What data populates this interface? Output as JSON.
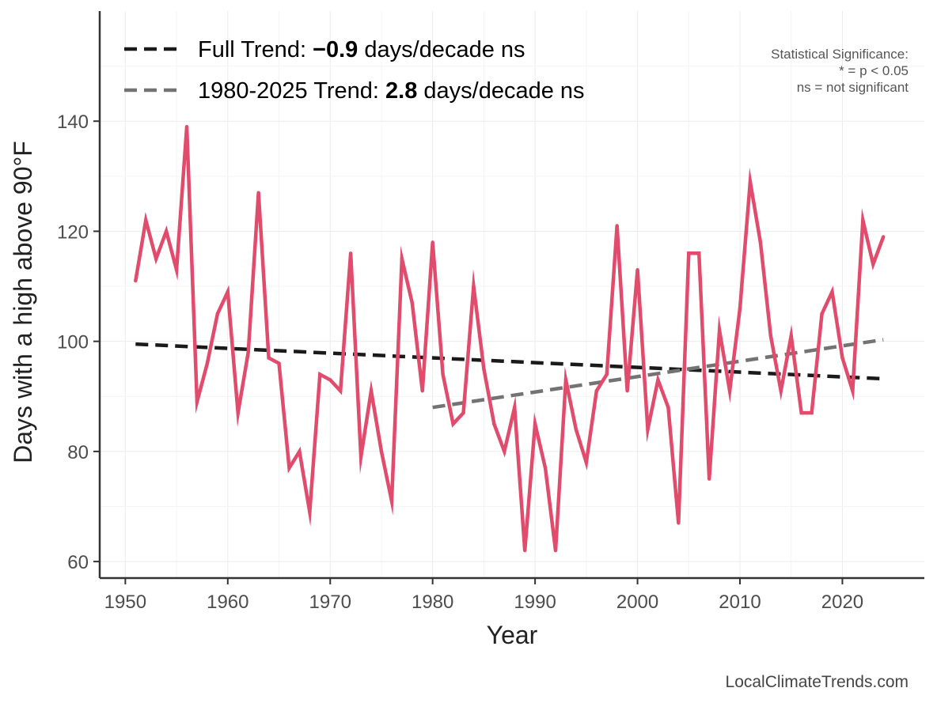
{
  "chart_data": {
    "type": "line",
    "title": "",
    "xlabel": "Year",
    "ylabel": "Days with a high above 90°F",
    "xlim": [
      1947.5,
      2028
    ],
    "ylim": [
      57,
      160
    ],
    "x_ticks": [
      1950,
      1960,
      1970,
      1980,
      1990,
      2000,
      2010,
      2020
    ],
    "y_ticks": [
      60,
      80,
      100,
      120,
      140
    ],
    "grid": true,
    "colors": {
      "series": "#e14b6c",
      "full_trend": "#1a1a1a",
      "recent_trend": "#737373",
      "axis": "#333333",
      "grid": "#ececec"
    },
    "series": [
      {
        "name": "Days with a high above 90°F",
        "x": [
          1951,
          1952,
          1953,
          1954,
          1955,
          1956,
          1957,
          1958,
          1959,
          1960,
          1961,
          1962,
          1963,
          1964,
          1965,
          1966,
          1967,
          1968,
          1969,
          1970,
          1971,
          1972,
          1973,
          1974,
          1975,
          1976,
          1977,
          1978,
          1979,
          1980,
          1981,
          1982,
          1983,
          1984,
          1985,
          1986,
          1987,
          1988,
          1989,
          1990,
          1991,
          1992,
          1993,
          1994,
          1995,
          1996,
          1997,
          1998,
          1999,
          2000,
          2001,
          2002,
          2003,
          2004,
          2005,
          2006,
          2007,
          2008,
          2009,
          2010,
          2011,
          2012,
          2013,
          2014,
          2015,
          2016,
          2017,
          2018,
          2019,
          2020,
          2021,
          2022,
          2023,
          2024
        ],
        "values": [
          111,
          122,
          115,
          120,
          113,
          139,
          89,
          96,
          105,
          109,
          87,
          98,
          127,
          97,
          96,
          77,
          80,
          69,
          94,
          93,
          91,
          116,
          79,
          91,
          80,
          71,
          115,
          107,
          91,
          118,
          94,
          85,
          87,
          110,
          95,
          85,
          80,
          88,
          62,
          85,
          77,
          62,
          93,
          84,
          78,
          91,
          94,
          121,
          91,
          113,
          84,
          93,
          88,
          67,
          116,
          116,
          75,
          102,
          91,
          106,
          129,
          118,
          101,
          91,
          101,
          87,
          87,
          105,
          109,
          97,
          91,
          122,
          114,
          119
        ]
      }
    ],
    "trends": [
      {
        "name": "Full Trend",
        "x": [
          1951,
          2024
        ],
        "values": [
          99.5,
          93.2
        ]
      },
      {
        "name": "1980-2025 Trend",
        "x": [
          1980,
          2024
        ],
        "values": [
          88,
          100.3
        ]
      }
    ],
    "legend": {
      "position": "top-left",
      "items": [
        {
          "prefix": "Full Trend: ",
          "value": "−0.9",
          "suffix": " days/decade ns"
        },
        {
          "prefix": "1980-2025 Trend: ",
          "value": "2.8",
          "suffix": " days/decade ns"
        }
      ]
    },
    "significance_note": {
      "position": "top-right",
      "lines": [
        "Statistical Significance:",
        "* = p < 0.05",
        "ns = not significant"
      ]
    },
    "source": "LocalClimateTrends.com"
  }
}
